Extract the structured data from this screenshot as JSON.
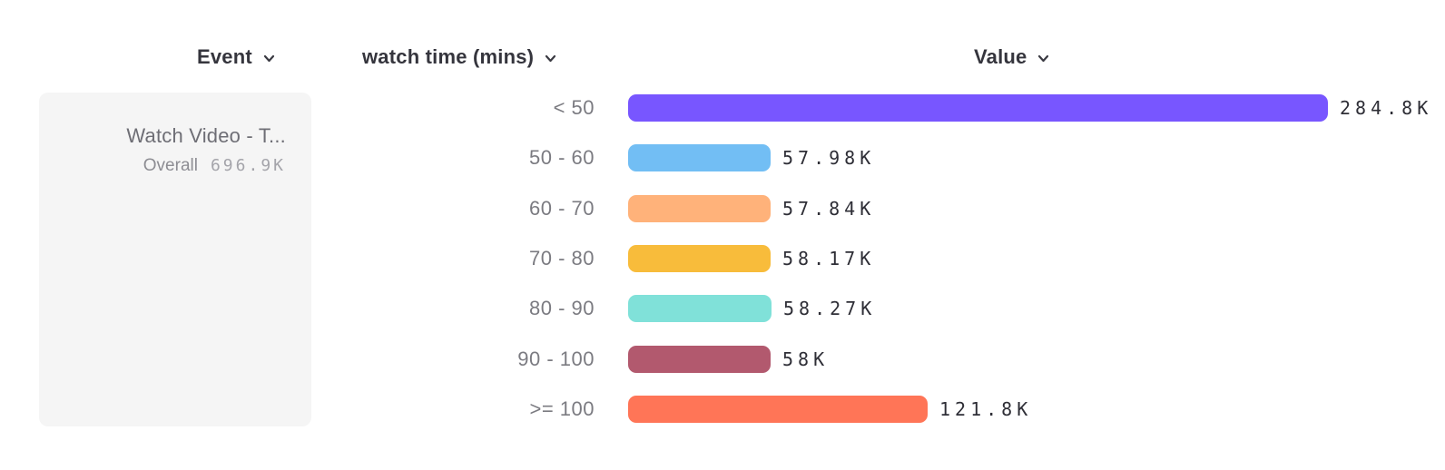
{
  "header": {
    "event_label": "Event",
    "breakdown_label": "watch time (mins)",
    "value_label": "Value"
  },
  "event_card": {
    "name": "Watch Video - T...",
    "overall_label": "Overall",
    "overall_value": "696.9K"
  },
  "chart_data": {
    "type": "bar",
    "orientation": "horizontal",
    "series_name": "Watch Video - T...",
    "breakdown_property": "watch time (mins)",
    "categories": [
      "< 50",
      "50 - 60",
      "60 - 70",
      "70 - 80",
      "80 - 90",
      "90 - 100",
      ">= 100"
    ],
    "values": [
      284800,
      57980,
      57840,
      58170,
      58270,
      58000,
      121800
    ],
    "value_labels": [
      "284.8K",
      "57.98K",
      "57.84K",
      "58.17K",
      "58.27K",
      "58K",
      "121.8K"
    ],
    "bar_colors": [
      "#7856FF",
      "#72BEF4",
      "#FFB27A",
      "#F8BC3B",
      "#80E1D9",
      "#B2596E",
      "#FF7557"
    ],
    "overall_total": 696900,
    "overall_total_label": "696.9K",
    "xlabel": "Value",
    "ylabel": "watch time (mins)",
    "xlim": [
      0,
      284800
    ],
    "grid": false,
    "legend": false
  }
}
